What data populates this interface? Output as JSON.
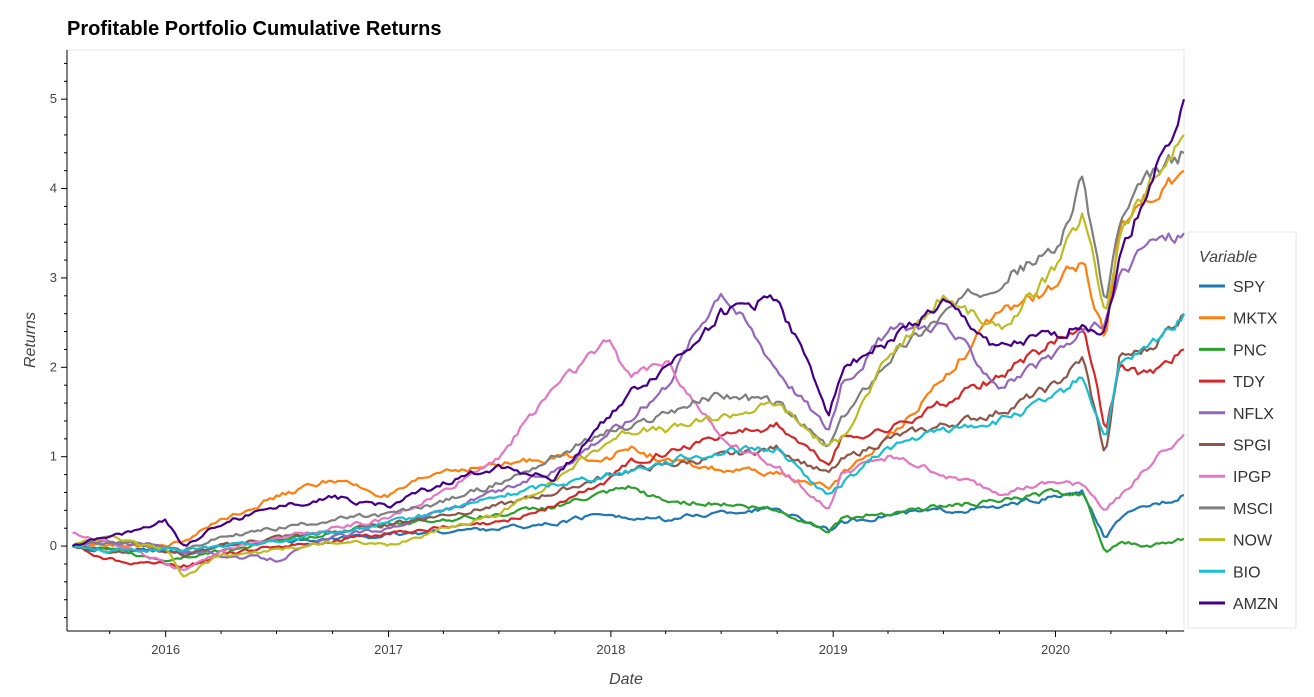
{
  "chart_data": {
    "type": "line",
    "title": "Profitable Portfolio Cumulative Returns",
    "xlabel": "Date",
    "ylabel": "Returns",
    "x_ticks": [
      "2016",
      "2017",
      "2018",
      "2019",
      "2020"
    ],
    "y_ticks": [
      0,
      1,
      2,
      3,
      4,
      5
    ],
    "xlim": [
      "2015-07-23",
      "2020-07-30"
    ],
    "ylim": [
      -0.95,
      5.55
    ],
    "grid": false,
    "legend": {
      "title": "Variable",
      "placement": "right"
    },
    "x": [
      "2015-08-01",
      "2015-10-01",
      "2016-01-01",
      "2016-02-01",
      "2016-04-01",
      "2016-07-01",
      "2016-10-01",
      "2017-01-01",
      "2017-04-01",
      "2017-07-01",
      "2017-10-01",
      "2018-01-01",
      "2018-02-01",
      "2018-04-01",
      "2018-07-01",
      "2018-10-01",
      "2018-12-24",
      "2019-01-15",
      "2019-04-01",
      "2019-07-01",
      "2019-10-01",
      "2020-01-01",
      "2020-02-15",
      "2020-03-23",
      "2020-04-15",
      "2020-06-01",
      "2020-07-30"
    ],
    "series": [
      {
        "name": "SPY",
        "color": "#1f77b4",
        "values": [
          0.0,
          -0.05,
          -0.03,
          -0.08,
          -0.02,
          0.05,
          0.08,
          0.12,
          0.16,
          0.2,
          0.25,
          0.38,
          0.3,
          0.3,
          0.37,
          0.42,
          0.18,
          0.26,
          0.35,
          0.4,
          0.43,
          0.55,
          0.6,
          0.08,
          0.3,
          0.45,
          0.57
        ]
      },
      {
        "name": "MKTX",
        "color": "#ff7f0e",
        "values": [
          0.0,
          0.02,
          0.0,
          0.05,
          0.3,
          0.55,
          0.75,
          0.55,
          0.85,
          0.9,
          1.0,
          1.0,
          1.1,
          0.95,
          0.85,
          0.8,
          0.65,
          0.8,
          1.2,
          1.9,
          2.6,
          2.9,
          3.2,
          2.3,
          3.6,
          3.9,
          4.2
        ]
      },
      {
        "name": "PNC",
        "color": "#2ca02c",
        "values": [
          0.0,
          -0.05,
          -0.15,
          -0.12,
          -0.05,
          0.05,
          0.15,
          0.25,
          0.3,
          0.35,
          0.45,
          0.6,
          0.65,
          0.5,
          0.48,
          0.4,
          0.18,
          0.3,
          0.38,
          0.45,
          0.5,
          0.6,
          0.6,
          -0.05,
          0.05,
          0.0,
          0.08
        ]
      },
      {
        "name": "TDY",
        "color": "#d62728",
        "values": [
          0.0,
          -0.15,
          -0.2,
          -0.22,
          -0.1,
          0.0,
          0.05,
          0.15,
          0.2,
          0.25,
          0.45,
          0.75,
          0.95,
          1.05,
          1.25,
          1.35,
          0.9,
          1.2,
          1.3,
          1.6,
          1.9,
          2.3,
          2.5,
          1.3,
          2.0,
          1.9,
          2.2
        ]
      },
      {
        "name": "NFLX",
        "color": "#9467bd",
        "values": [
          0.0,
          0.05,
          0.0,
          -0.05,
          -0.1,
          -0.15,
          0.1,
          0.2,
          0.4,
          0.6,
          0.85,
          1.3,
          1.4,
          1.8,
          2.9,
          2.0,
          1.3,
          1.8,
          2.4,
          2.5,
          1.8,
          2.1,
          2.4,
          2.5,
          3.0,
          3.4,
          3.5
        ]
      },
      {
        "name": "SPGI",
        "color": "#8c564b",
        "values": [
          0.0,
          -0.05,
          -0.05,
          -0.1,
          0.0,
          0.1,
          0.15,
          0.25,
          0.35,
          0.45,
          0.6,
          0.8,
          0.85,
          0.9,
          1.0,
          1.1,
          0.8,
          0.95,
          1.2,
          1.35,
          1.5,
          1.8,
          2.1,
          1.0,
          2.1,
          2.2,
          2.6
        ]
      },
      {
        "name": "IPGP",
        "color": "#e377c2",
        "values": [
          0.15,
          0.05,
          -0.2,
          -0.25,
          -0.05,
          0.1,
          0.2,
          0.3,
          0.6,
          1.0,
          1.8,
          2.3,
          1.9,
          2.1,
          1.2,
          0.9,
          0.4,
          0.8,
          1.0,
          0.8,
          0.6,
          0.7,
          0.7,
          0.4,
          0.55,
          0.9,
          1.25
        ]
      },
      {
        "name": "MSCI",
        "color": "#7f7f7f",
        "values": [
          0.0,
          0.05,
          0.0,
          -0.05,
          0.1,
          0.2,
          0.3,
          0.35,
          0.5,
          0.7,
          1.0,
          1.3,
          1.3,
          1.5,
          1.7,
          1.6,
          1.1,
          1.4,
          2.1,
          2.6,
          3.0,
          3.3,
          4.1,
          2.7,
          3.6,
          4.1,
          4.4
        ]
      },
      {
        "name": "NOW",
        "color": "#bcbd22",
        "values": [
          0.0,
          0.1,
          -0.05,
          -0.35,
          -0.1,
          -0.05,
          0.05,
          0.0,
          0.2,
          0.35,
          0.75,
          1.2,
          1.3,
          1.3,
          1.45,
          1.6,
          1.1,
          1.2,
          2.1,
          2.8,
          2.4,
          3.1,
          3.7,
          2.6,
          3.5,
          4.0,
          4.6
        ]
      },
      {
        "name": "BIO",
        "color": "#17becf",
        "values": [
          0.0,
          -0.05,
          -0.05,
          -0.05,
          0.0,
          0.05,
          0.15,
          0.25,
          0.4,
          0.55,
          0.7,
          0.8,
          0.85,
          0.95,
          1.05,
          1.1,
          0.55,
          0.7,
          1.1,
          1.3,
          1.4,
          1.65,
          1.9,
          1.2,
          2.0,
          2.2,
          2.6
        ]
      },
      {
        "name": "AMZN",
        "color": "#440088",
        "values": [
          0.0,
          0.1,
          0.28,
          0.0,
          0.25,
          0.45,
          0.55,
          0.45,
          0.7,
          0.9,
          0.75,
          1.5,
          1.7,
          2.0,
          2.6,
          2.8,
          1.5,
          2.0,
          2.3,
          2.7,
          2.2,
          2.35,
          2.5,
          2.4,
          3.2,
          4.0,
          5.0
        ]
      }
    ]
  }
}
